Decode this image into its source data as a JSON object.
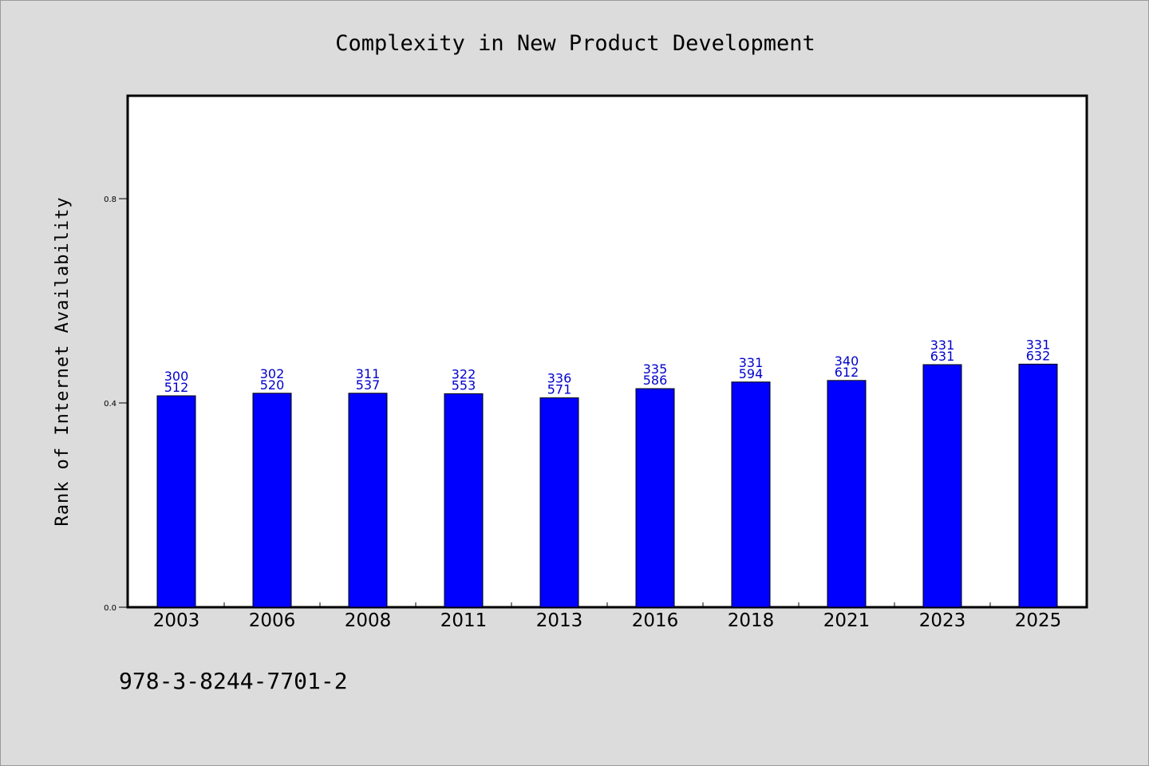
{
  "chart_data": {
    "type": "bar",
    "title": "Complexity in New Product Development",
    "xlabel": "",
    "ylabel": "Rank of Internet Availability",
    "categories": [
      "2003",
      "2006",
      "2008",
      "2011",
      "2013",
      "2016",
      "2018",
      "2021",
      "2023",
      "2025"
    ],
    "values": [
      0.414,
      0.419,
      0.419,
      0.418,
      0.41,
      0.428,
      0.441,
      0.444,
      0.475,
      0.476
    ],
    "data_labels_top": [
      "300",
      "302",
      "311",
      "322",
      "336",
      "335",
      "331",
      "340",
      "331",
      "331"
    ],
    "data_labels_bottom": [
      "512",
      "520",
      "537",
      "553",
      "571",
      "586",
      "594",
      "612",
      "631",
      "632"
    ],
    "ylim": [
      0.0,
      1.0
    ],
    "yticks": [
      0.0,
      0.4,
      0.8
    ],
    "ytick_labels": [
      "0.0",
      "0.4",
      "0.8"
    ],
    "grid": false,
    "bar_color": "#0000ff",
    "label_color": "#0000cc"
  },
  "footer": {
    "isbn": "978-3-8244-7701-2"
  },
  "colors": {
    "background": "#dcdcdc",
    "plot_background": "#ffffff",
    "axis": "#000000"
  }
}
